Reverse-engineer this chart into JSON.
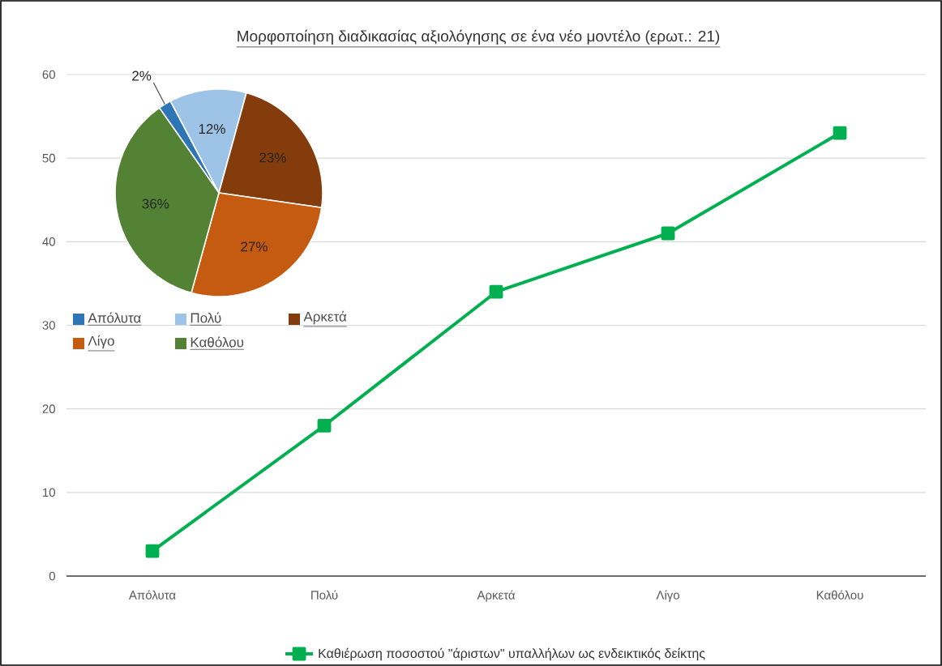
{
  "chart_data": [
    {
      "type": "line",
      "title": "Μορφοποίηση διαδικασίας αξιολόγησης σε ένα νέο μοντέλο (ερωτ.: 21)",
      "categories": [
        "Απόλυτα",
        "Πολύ",
        "Αρκετά",
        "Λίγο",
        "Καθόλου"
      ],
      "series": [
        {
          "name": "Καθιέρωση ποσοστού \"άριστων\" υπαλλήλων ως ενδεικτικός δείκτης",
          "color": "#00b050",
          "values": [
            3,
            18,
            34,
            41,
            53
          ]
        }
      ],
      "ylim": [
        0,
        60
      ],
      "yticks": [
        0,
        10,
        20,
        30,
        40,
        50,
        60
      ],
      "grid": "y",
      "legend": "bottom",
      "marker": "square"
    },
    {
      "type": "pie",
      "categories": [
        "Απόλυτα",
        "Πολύ",
        "Αρκετά",
        "Λίγο",
        "Καθόλου"
      ],
      "values": [
        2,
        12,
        23,
        27,
        36
      ],
      "colors": [
        "#2e75b6",
        "#9dc3e6",
        "#843c0c",
        "#c55a11",
        "#548235"
      ],
      "value_labels": [
        "2%",
        "12%",
        "23%",
        "27%",
        "36%"
      ],
      "legend": "bottom"
    }
  ]
}
